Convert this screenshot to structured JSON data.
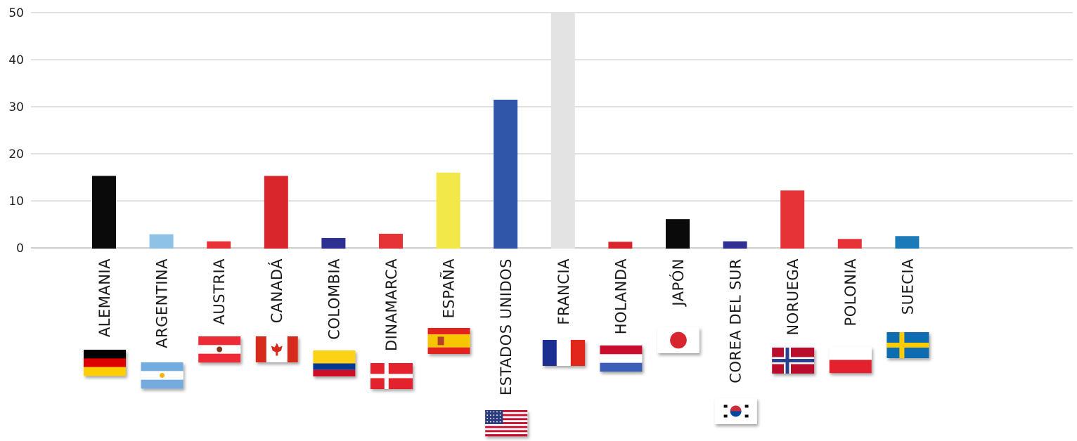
{
  "chart_data": {
    "type": "bar",
    "title": "",
    "xlabel": "",
    "ylabel": "",
    "ylim": [
      0,
      50
    ],
    "yticks": [
      0,
      10,
      20,
      30,
      40,
      50
    ],
    "grid": true,
    "categories": [
      "ALEMANIA",
      "ARGENTINA",
      "AUSTRIA",
      "CANADÁ",
      "COLOMBIA",
      "DINAMARCA",
      "ESPAÑA",
      "ESTADOS UNIDOS",
      "FRANCIA",
      "HOLANDA",
      "JAPÓN",
      "COREA DEL SUR",
      "NORUEGA",
      "POLONIA",
      "SUECIA"
    ],
    "values": [
      15.3,
      2.9,
      1.4,
      15.3,
      2.1,
      3.0,
      16.0,
      31.5,
      50.0,
      1.3,
      6.1,
      1.4,
      12.2,
      1.9,
      2.5
    ],
    "bar_colors": [
      "#0a0a0a",
      "#8ec2e6",
      "#e63338",
      "#d9262c",
      "#2e3192",
      "#e63338",
      "#f3e84a",
      "#2f56a8",
      "#e3e3e3",
      "#d9262c",
      "#0a0a0a",
      "#2e3192",
      "#e63338",
      "#e63338",
      "#1a7bb8"
    ],
    "flags": [
      "flag-germany-icon",
      "flag-argentina-icon",
      "flag-austria-icon",
      "flag-canada-icon",
      "flag-colombia-icon",
      "flag-denmark-icon",
      "flag-spain-icon",
      "flag-usa-icon",
      "flag-france-icon",
      "flag-netherlands-icon",
      "flag-japan-icon",
      "flag-south-korea-icon",
      "flag-norway-icon",
      "flag-poland-icon",
      "flag-sweden-icon"
    ]
  }
}
